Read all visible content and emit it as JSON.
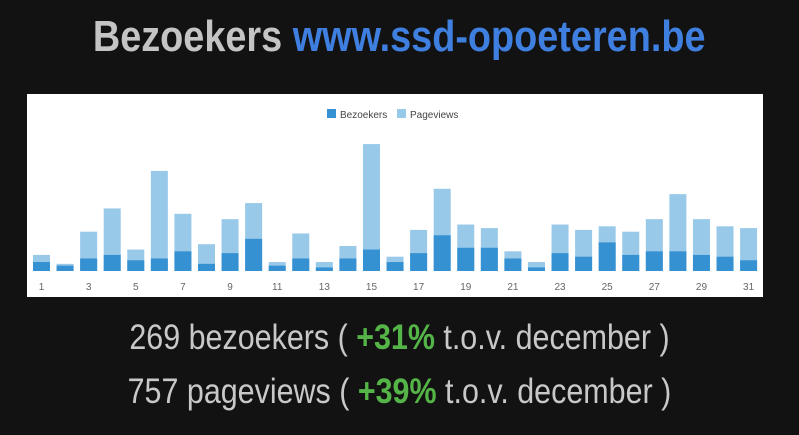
{
  "header": {
    "label": "Bezoekers",
    "site": "www.ssd-opoeteren.be"
  },
  "chart_data": {
    "type": "bar",
    "title": "",
    "overlay": true,
    "legend_position": "top-center",
    "grid": false,
    "x": [
      1,
      2,
      3,
      4,
      5,
      6,
      7,
      8,
      9,
      10,
      11,
      12,
      13,
      14,
      15,
      16,
      17,
      18,
      19,
      20,
      21,
      22,
      23,
      24,
      25,
      26,
      27,
      28,
      29,
      30,
      31
    ],
    "x_tick_labels": [
      "1",
      "3",
      "5",
      "7",
      "9",
      "11",
      "13",
      "15",
      "17",
      "19",
      "21",
      "23",
      "25",
      "27",
      "29",
      "31"
    ],
    "ylim": [
      0,
      80
    ],
    "series": [
      {
        "name": "Bezoekers",
        "color": "#3591d1",
        "values": [
          5,
          3,
          7,
          9,
          6,
          7,
          11,
          4,
          10,
          18,
          3,
          7,
          2,
          7,
          12,
          5,
          10,
          20,
          13,
          13,
          7,
          2,
          10,
          8,
          16,
          9,
          11,
          11,
          9,
          8,
          6
        ]
      },
      {
        "name": "Pageviews",
        "color": "#98c9e9",
        "values": [
          9,
          4,
          22,
          35,
          12,
          56,
          32,
          15,
          29,
          38,
          5,
          21,
          5,
          14,
          71,
          8,
          23,
          46,
          26,
          24,
          11,
          5,
          26,
          23,
          25,
          22,
          29,
          43,
          29,
          25,
          24
        ]
      }
    ]
  },
  "stats": [
    {
      "prefix": "269 bezoekers (",
      "pct": "+31%",
      "suffix": " t.o.v. december )"
    },
    {
      "prefix": "757 pageviews (",
      "pct": "+39%",
      "suffix": " t.o.v. december )"
    }
  ]
}
